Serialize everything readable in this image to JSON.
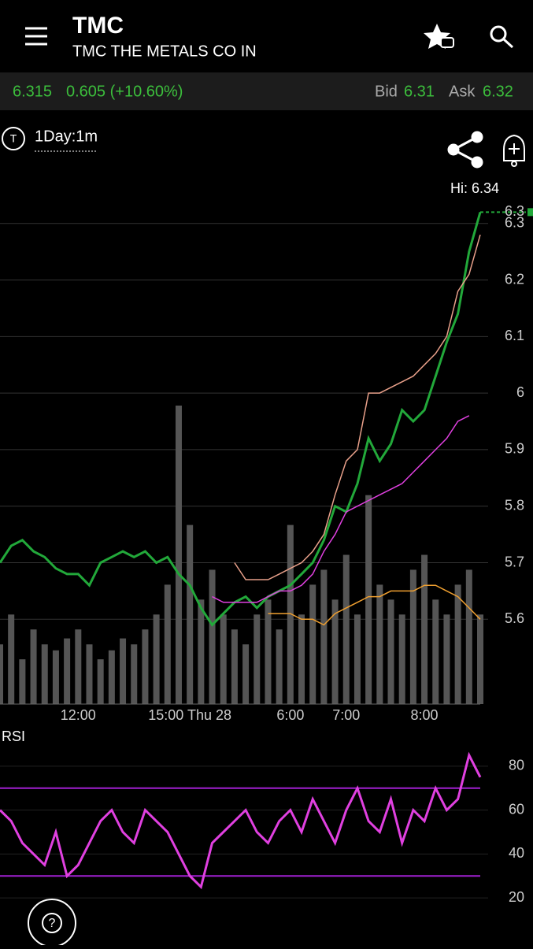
{
  "header": {
    "symbol": "TMC",
    "company": "TMC THE METALS CO IN"
  },
  "quote": {
    "last": "6.315",
    "change": "0.605 (+10.60%)",
    "bid_label": "Bid",
    "bid": "6.31",
    "ask_label": "Ask",
    "ask": "6.32"
  },
  "toolbar": {
    "interval": "1Day:1m",
    "high_label": "Hi: 6.34"
  },
  "help": "?",
  "chart_data": [
    {
      "type": "line",
      "categories": [
        null,
        null,
        null,
        null,
        null,
        null,
        null,
        "12:00",
        null,
        null,
        null,
        null,
        null,
        null,
        null,
        null,
        null,
        "15:00 Thu 28",
        null,
        null,
        null,
        null,
        null,
        null,
        null,
        null,
        "6:00",
        null,
        null,
        null,
        null,
        "7:00",
        null,
        null,
        null,
        null,
        null,
        null,
        "8:00",
        null,
        null,
        null,
        null,
        null
      ],
      "ylim": [
        5.45,
        6.34
      ],
      "yticks": [
        5.6,
        5.7,
        5.8,
        5.9,
        6,
        6.1,
        6.2,
        6.3
      ],
      "grid": true,
      "series": [
        {
          "color": "#22a83a",
          "values": [
            5.7,
            5.73,
            5.74,
            5.72,
            5.71,
            5.69,
            5.68,
            5.68,
            5.66,
            5.7,
            5.71,
            5.72,
            5.71,
            5.72,
            5.7,
            5.71,
            5.68,
            5.66,
            5.62,
            5.59,
            5.61,
            5.63,
            5.64,
            5.62,
            5.64,
            5.65,
            5.66,
            5.68,
            5.7,
            5.74,
            5.8,
            5.79,
            5.84,
            5.92,
            5.88,
            5.91,
            5.97,
            5.95,
            5.97,
            6.03,
            6.09,
            6.14,
            6.25,
            6.32
          ]
        },
        {
          "color": "#e8a08a",
          "values": [
            null,
            null,
            null,
            null,
            null,
            null,
            null,
            null,
            null,
            null,
            null,
            null,
            null,
            null,
            null,
            null,
            null,
            null,
            null,
            null,
            null,
            5.7,
            5.67,
            5.67,
            5.67,
            5.68,
            5.69,
            5.7,
            5.72,
            5.75,
            5.82,
            5.88,
            5.9,
            6.0,
            6.0,
            6.01,
            6.02,
            6.03,
            6.05,
            6.07,
            6.1,
            6.18,
            6.21,
            6.28
          ]
        },
        {
          "color": "#e040e0",
          "values": [
            null,
            null,
            null,
            null,
            null,
            null,
            null,
            null,
            null,
            null,
            null,
            null,
            null,
            null,
            null,
            null,
            null,
            null,
            null,
            5.64,
            5.63,
            5.63,
            5.63,
            5.63,
            5.64,
            5.65,
            5.65,
            5.66,
            5.68,
            5.72,
            5.75,
            5.79,
            5.8,
            5.81,
            5.82,
            5.83,
            5.84,
            5.86,
            5.88,
            5.9,
            5.92,
            5.95,
            5.96,
            null
          ]
        },
        {
          "color": "#f0a030",
          "values": [
            null,
            null,
            null,
            null,
            null,
            null,
            null,
            null,
            null,
            null,
            null,
            null,
            null,
            null,
            null,
            null,
            null,
            null,
            null,
            null,
            null,
            null,
            null,
            null,
            5.61,
            5.61,
            5.61,
            5.6,
            5.6,
            5.59,
            5.61,
            5.62,
            5.63,
            5.64,
            5.64,
            5.65,
            5.65,
            5.65,
            5.66,
            5.66,
            5.65,
            5.64,
            5.62,
            5.6
          ]
        }
      ],
      "last_price_label": "6.3",
      "volume": {
        "color": "#555555",
        "ylim": [
          0,
          100
        ],
        "values": [
          20,
          30,
          15,
          25,
          20,
          18,
          22,
          25,
          20,
          15,
          18,
          22,
          20,
          25,
          30,
          40,
          100,
          60,
          35,
          45,
          30,
          25,
          20,
          30,
          35,
          25,
          60,
          30,
          40,
          45,
          35,
          50,
          30,
          70,
          40,
          35,
          30,
          45,
          50,
          35,
          30,
          40,
          45,
          30
        ]
      }
    },
    {
      "type": "line",
      "title": "RSI",
      "ylim": [
        10,
        90
      ],
      "yticks": [
        20,
        40,
        60,
        80
      ],
      "levels": [
        70,
        30
      ],
      "level_color": "#a020d0",
      "series": [
        {
          "color": "#e040e0",
          "values": [
            60,
            55,
            45,
            40,
            35,
            50,
            30,
            35,
            45,
            55,
            60,
            50,
            45,
            60,
            55,
            50,
            40,
            30,
            25,
            45,
            50,
            55,
            60,
            50,
            45,
            55,
            60,
            50,
            65,
            55,
            45,
            60,
            70,
            55,
            50,
            65,
            45,
            60,
            55,
            70,
            60,
            65,
            85,
            75
          ]
        }
      ]
    }
  ]
}
